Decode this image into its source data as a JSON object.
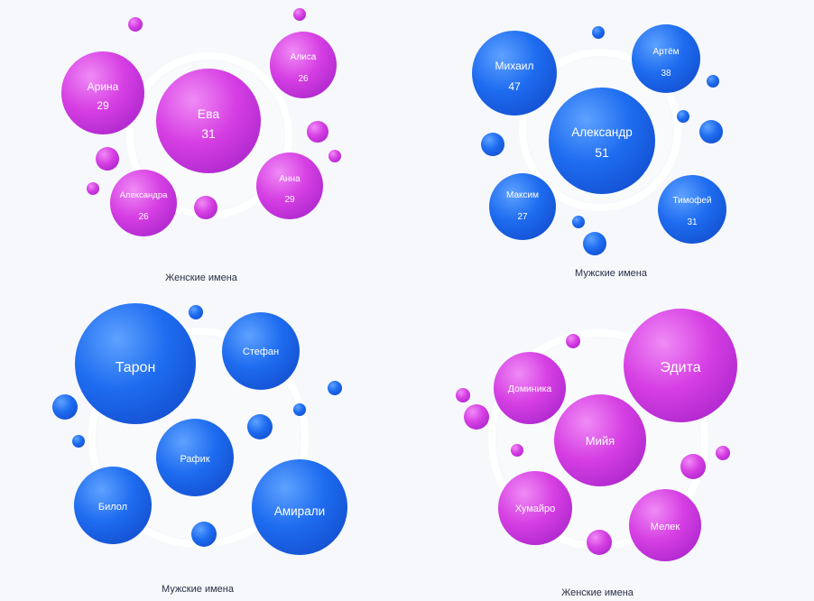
{
  "colors": {
    "pink": "#d13ee0",
    "blue": "#1b67ea"
  },
  "chart_data": [
    {
      "type": "bubble",
      "title": "Женские имена",
      "color": "pink",
      "items": [
        {
          "name": "Ева",
          "value": "31"
        },
        {
          "name": "Арина",
          "value": "29"
        },
        {
          "name": "Алиса",
          "value": "26"
        },
        {
          "name": "Анна",
          "value": "29"
        },
        {
          "name": "Александра",
          "value": "26"
        }
      ]
    },
    {
      "type": "bubble",
      "title": "Мужские имена",
      "color": "blue",
      "items": [
        {
          "name": "Александр",
          "value": "51"
        },
        {
          "name": "Михаил",
          "value": "47"
        },
        {
          "name": "Артём",
          "value": "38"
        },
        {
          "name": "Максим",
          "value": "27"
        },
        {
          "name": "Тимофей",
          "value": "31"
        }
      ]
    },
    {
      "type": "bubble",
      "title": "Мужские имена",
      "color": "blue",
      "items": [
        {
          "name": "Тарон",
          "value": ""
        },
        {
          "name": "Стефан",
          "value": ""
        },
        {
          "name": "Рафик",
          "value": ""
        },
        {
          "name": "Билол",
          "value": ""
        },
        {
          "name": "Амирали",
          "value": ""
        }
      ]
    },
    {
      "type": "bubble",
      "title": "Женские имена",
      "color": "pink",
      "items": [
        {
          "name": "Эдита",
          "value": ""
        },
        {
          "name": "Доминика",
          "value": ""
        },
        {
          "name": "Мийя",
          "value": ""
        },
        {
          "name": "Хумайро",
          "value": ""
        },
        {
          "name": "Мелек",
          "value": ""
        }
      ]
    }
  ]
}
